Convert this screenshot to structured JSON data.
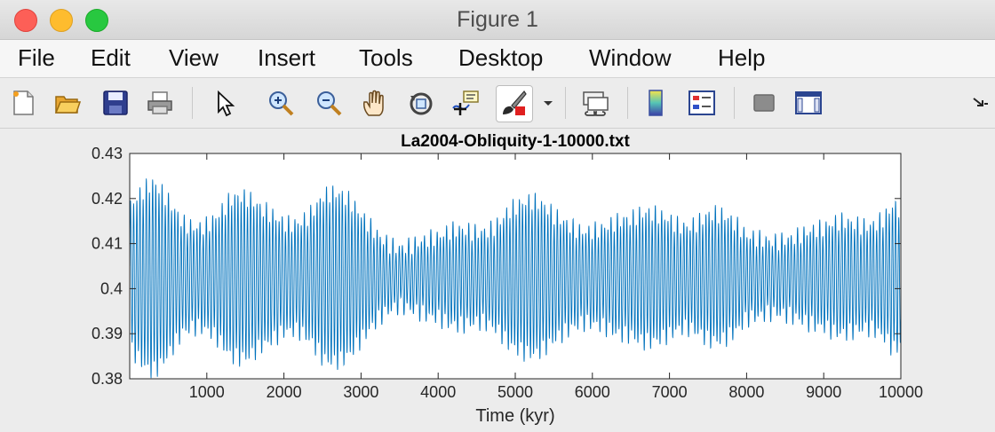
{
  "window": {
    "title": "Figure 1"
  },
  "menu": [
    "File",
    "Edit",
    "View",
    "Insert",
    "Tools",
    "Desktop",
    "Window",
    "Help"
  ],
  "toolbar_icons": [
    "new-figure-icon",
    "open-file-icon",
    "save-icon",
    "print-icon",
    "edit-plot-arrow-icon",
    "zoom-in-icon",
    "zoom-out-icon",
    "pan-hand-icon",
    "rotate-3d-icon",
    "data-cursor-icon",
    "brush-icon",
    "brush-dropdown-icon",
    "link-plot-icon",
    "colorbar-icon",
    "legend-icon",
    "hide-plot-tools-icon",
    "show-plot-tools-icon",
    "dock-arrow-icon"
  ],
  "chart_data": {
    "type": "line",
    "title": "La2004-Obliquity-1-10000.txt",
    "xlabel": "Time (kyr)",
    "ylabel": "",
    "xlim": [
      0,
      10000
    ],
    "ylim": [
      0.38,
      0.43
    ],
    "xticks": [
      1000,
      2000,
      3000,
      4000,
      5000,
      6000,
      7000,
      8000,
      9000,
      10000
    ],
    "yticks": [
      0.38,
      0.39,
      0.4,
      0.41,
      0.42,
      0.43
    ],
    "xtick_labels": [
      "1000",
      "2000",
      "3000",
      "4000",
      "5000",
      "6000",
      "7000",
      "8000",
      "9000",
      "10000"
    ],
    "ytick_labels": [
      "0.38",
      "0.39",
      "0.4",
      "0.41",
      "0.42",
      "0.43"
    ],
    "grid": false,
    "line_color": "#0072bd",
    "series": [
      {
        "x_start": 1,
        "x_end": 10000,
        "x_step": 1,
        "mean": 0.4025,
        "oscillation_period_kyr": 41,
        "amplitude_envelope": [
          [
            0,
            0.019
          ],
          [
            300,
            0.021
          ],
          [
            700,
            0.016
          ],
          [
            1000,
            0.018
          ],
          [
            1300,
            0.02
          ],
          [
            1700,
            0.016
          ],
          [
            2000,
            0.017
          ],
          [
            2500,
            0.022
          ],
          [
            3000,
            0.015
          ],
          [
            3500,
            0.01
          ],
          [
            4000,
            0.009
          ],
          [
            4500,
            0.014
          ],
          [
            4900,
            0.02
          ],
          [
            5500,
            0.015
          ],
          [
            6000,
            0.016
          ],
          [
            6500,
            0.013
          ],
          [
            7000,
            0.018
          ],
          [
            7500,
            0.017
          ],
          [
            8000,
            0.01
          ],
          [
            8500,
            0.013
          ],
          [
            9000,
            0.011
          ],
          [
            9500,
            0.016
          ],
          [
            9900,
            0.022
          ],
          [
            10000,
            0.018
          ]
        ]
      }
    ]
  }
}
